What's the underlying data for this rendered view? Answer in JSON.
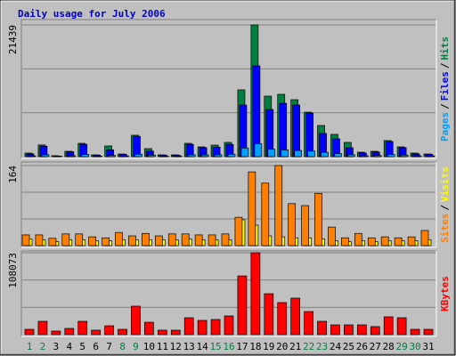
{
  "chart_data": [
    {
      "type": "bar",
      "title": "Daily usage for July 2006",
      "ylim": [
        0,
        21439
      ],
      "yticks": [
        21439
      ],
      "legend_separator": "/",
      "series": [
        {
          "name": "Pages",
          "color": "#00a0ff",
          "values": [
            120,
            300,
            60,
            150,
            350,
            80,
            200,
            90,
            400,
            250,
            70,
            70,
            300,
            280,
            300,
            400,
            1400,
            2100,
            1200,
            1100,
            1000,
            900,
            700,
            500,
            300,
            150,
            180,
            350,
            250,
            120,
            100
          ]
        },
        {
          "name": "Files",
          "color": "#0000ff",
          "values": [
            450,
            1700,
            100,
            800,
            2000,
            250,
            1100,
            350,
            3300,
            900,
            250,
            250,
            2000,
            1450,
            1550,
            2000,
            8400,
            14780,
            7680,
            8690,
            8400,
            7100,
            3770,
            2900,
            1450,
            600,
            750,
            2460,
            1450,
            450,
            350
          ]
        },
        {
          "name": "Hits",
          "color": "#008040",
          "values": [
            580,
            1900,
            150,
            870,
            2170,
            290,
            1740,
            430,
            3480,
            1300,
            290,
            290,
            2170,
            1590,
            1880,
            2320,
            10870,
            21439,
            9850,
            10140,
            9270,
            7240,
            5070,
            3620,
            2320,
            720,
            870,
            2610,
            1590,
            580,
            430
          ]
        }
      ]
    },
    {
      "type": "bar",
      "ylim": [
        0,
        164
      ],
      "yticks": [
        164
      ],
      "legend_separator": "/",
      "series": [
        {
          "name": "Sites",
          "color": "#ff8000",
          "values": [
            22,
            22,
            15,
            24,
            24,
            18,
            16,
            27,
            20,
            25,
            20,
            24,
            24,
            22,
            22,
            24,
            58,
            151,
            128,
            164,
            86,
            82,
            107,
            38,
            16,
            25,
            16,
            18,
            16,
            18,
            31
          ]
        },
        {
          "name": "Visits",
          "color": "#ffff00",
          "values": [
            14,
            12,
            8,
            12,
            12,
            10,
            10,
            12,
            12,
            12,
            12,
            12,
            14,
            12,
            12,
            12,
            53,
            42,
            20,
            18,
            16,
            16,
            14,
            10,
            8,
            10,
            8,
            10,
            10,
            10,
            12
          ]
        }
      ]
    },
    {
      "type": "bar",
      "ylim": [
        0,
        108073
      ],
      "yticks": [
        108073
      ],
      "categories": [
        "1",
        "2",
        "3",
        "4",
        "5",
        "6",
        "7",
        "8",
        "9",
        "10",
        "11",
        "12",
        "13",
        "14",
        "15",
        "16",
        "17",
        "18",
        "19",
        "20",
        "21",
        "22",
        "23",
        "24",
        "25",
        "26",
        "27",
        "28",
        "29",
        "30",
        "31"
      ],
      "label_colors": [
        "#008040",
        "#008040",
        "#000000",
        "#000000",
        "#000000",
        "#000000",
        "#000000",
        "#008040",
        "#008040",
        "#000000",
        "#000000",
        "#000000",
        "#000000",
        "#000000",
        "#008040",
        "#008040",
        "#000000",
        "#000000",
        "#000000",
        "#000000",
        "#000000",
        "#008040",
        "#008040",
        "#000000",
        "#000000",
        "#000000",
        "#000000",
        "#000000",
        "#008040",
        "#008040",
        "#000000"
      ],
      "series": [
        {
          "name": "KBytes",
          "color": "#ff0000",
          "values": [
            7000,
            17600,
            4700,
            8200,
            17600,
            5900,
            11700,
            7000,
            37600,
            16400,
            5900,
            5900,
            22300,
            18800,
            20000,
            24700,
            77500,
            108073,
            54000,
            42300,
            48200,
            30500,
            17600,
            12900,
            12900,
            12900,
            10600,
            23500,
            22300,
            7000,
            7000
          ]
        }
      ]
    }
  ]
}
